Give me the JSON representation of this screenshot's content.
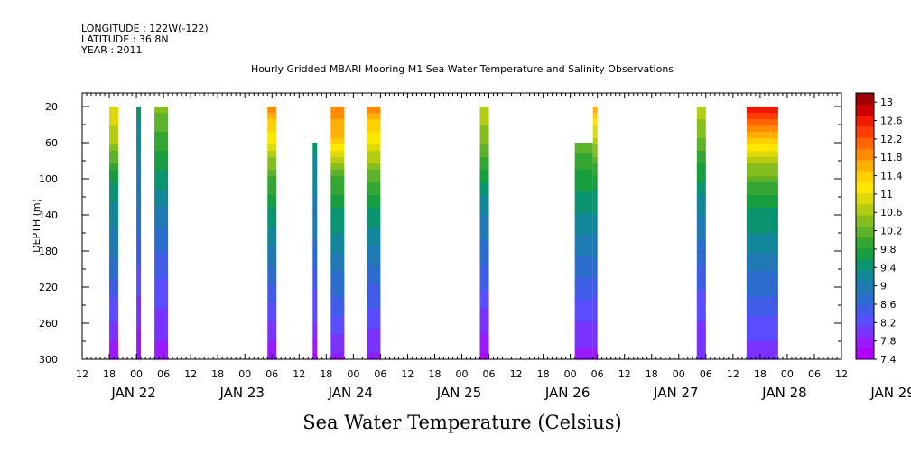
{
  "header": {
    "longitude": "LONGITUDE : 122W(-122)",
    "latitude": "LATITUDE : 36.8N",
    "year": "YEAR : 2011",
    "title": "Hourly Gridded MBARI Mooring M1 Sea Water Temperature and Salinity Observations"
  },
  "chart_data": {
    "type": "heatmap",
    "title": "Hourly Gridded MBARI Mooring M1 Sea Water Temperature and Salinity Observations",
    "xlabel": "",
    "ylabel": "DEPTH (m)",
    "colorbar_label": "Sea Water Temperature (Celsius)",
    "x_range_hours": [
      -12,
      156
    ],
    "x_origin_note": "JAN 22 00",
    "x_hour_ticks": [
      "12",
      "18",
      "00",
      "06",
      "12",
      "18",
      "00",
      "06",
      "12",
      "18",
      "00",
      "06",
      "12",
      "18",
      "00",
      "06",
      "12",
      "18",
      "00",
      "06",
      "12",
      "18",
      "00",
      "06",
      "12",
      "18",
      "00",
      "06",
      "12"
    ],
    "x_day_labels": [
      "JAN 22",
      "JAN 23",
      "JAN 24",
      "JAN 25",
      "JAN 26",
      "JAN 27",
      "JAN 28",
      "JAN 29"
    ],
    "ylim": [
      300,
      5
    ],
    "y_ticks": [
      "20",
      "60",
      "100",
      "140",
      "180",
      "220",
      "260",
      "300"
    ],
    "colorbar": {
      "min": 7.4,
      "max": 13.2,
      "tick_labels": [
        "13",
        "12.6",
        "12.2",
        "11.8",
        "11.4",
        "11",
        "10.6",
        "10.2",
        "9.8",
        "9.4",
        "9",
        "8.6",
        "8.2",
        "7.8",
        "7.4"
      ],
      "colors": [
        "#b200ff",
        "#9a1aff",
        "#7a33ff",
        "#5a4cff",
        "#3f5ce6",
        "#2c6ccc",
        "#1f7ab3",
        "#12879a",
        "#0b9470",
        "#179e3e",
        "#33a633",
        "#5cb22a",
        "#85be1f",
        "#b3cc14",
        "#dfd90a",
        "#ffe800",
        "#ffd000",
        "#ffb000",
        "#ff8c00",
        "#ff6600",
        "#ff3d00",
        "#f01a00",
        "#cc0000",
        "#a00000"
      ]
    },
    "series": [
      {
        "start_hour": -6,
        "end_hour": -4,
        "top_depth": 20,
        "temps": [
          11.0,
          10.6,
          9.6,
          9.2,
          8.9,
          8.5,
          8.1,
          7.7
        ]
      },
      {
        "start_hour": 0,
        "end_hour": 1,
        "top_depth": 20,
        "temps": [
          9.4,
          9.2,
          9.0,
          8.8,
          8.5,
          8.2,
          7.9,
          7.7
        ]
      },
      {
        "start_hour": 4,
        "end_hour": 7,
        "top_depth": 20,
        "temps": [
          10.4,
          9.9,
          9.5,
          9.0,
          8.6,
          8.3,
          8.0,
          7.7
        ]
      },
      {
        "start_hour": 29,
        "end_hour": 31,
        "top_depth": 20,
        "temps": [
          11.9,
          11.0,
          10.0,
          9.5,
          9.0,
          8.6,
          8.1,
          7.6
        ]
      },
      {
        "start_hour": 39,
        "end_hour": 40,
        "top_depth": 60,
        "temps": [
          9.4,
          9.2,
          9.0,
          8.8,
          8.4,
          8.1,
          7.6
        ]
      },
      {
        "start_hour": 43,
        "end_hour": 46,
        "top_depth": 20,
        "temps": [
          12.0,
          11.4,
          10.0,
          9.5,
          9.1,
          8.7,
          8.3,
          7.8
        ]
      },
      {
        "start_hour": 51,
        "end_hour": 54,
        "top_depth": 20,
        "temps": [
          11.9,
          11.0,
          10.1,
          9.5,
          9.0,
          8.6,
          8.2,
          7.8
        ]
      },
      {
        "start_hour": 76,
        "end_hour": 78,
        "top_depth": 20,
        "temps": [
          10.8,
          10.3,
          9.6,
          9.1,
          8.7,
          8.4,
          8.0,
          7.6
        ]
      },
      {
        "start_hour": 97,
        "end_hour": 101,
        "top_depth": 60,
        "temps": [
          10.2,
          9.7,
          9.3,
          8.9,
          8.5,
          8.1,
          7.8
        ]
      },
      {
        "start_hour": 101,
        "end_hour": 102,
        "top_depth": 20,
        "temps": [
          11.6,
          10.6,
          9.7,
          9.3,
          8.9,
          8.5,
          8.1,
          7.8
        ]
      },
      {
        "start_hour": 124,
        "end_hour": 126,
        "top_depth": 20,
        "temps": [
          10.8,
          10.2,
          9.6,
          9.1,
          8.7,
          8.4,
          8.1,
          7.9
        ]
      },
      {
        "start_hour": 135,
        "end_hour": 142,
        "top_depth": 20,
        "temps": [
          12.6,
          11.4,
          10.1,
          9.5,
          9.1,
          8.7,
          8.3,
          7.9
        ]
      }
    ]
  }
}
